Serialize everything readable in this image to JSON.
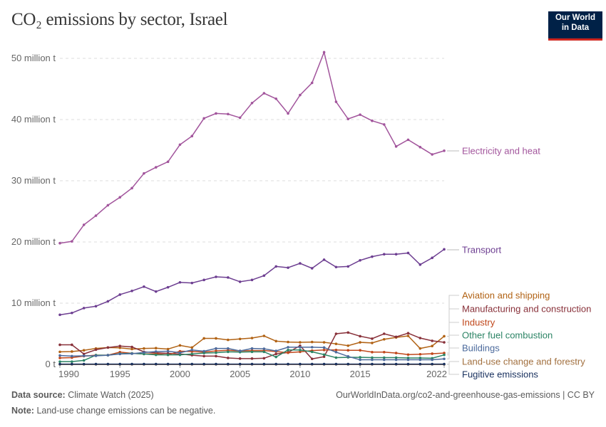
{
  "title": "CO₂ emissions by sector, Israel",
  "logo": {
    "line1": "Our World",
    "line2": "in Data"
  },
  "footer": {
    "source_label": "Data source:",
    "source": "Climate Watch (2025)",
    "url": "OurWorldInData.org/co2-and-greenhouse-gas-emissions | CC BY",
    "note_label": "Note:",
    "note": "Land-use change emissions can be negative."
  },
  "chart_data": {
    "type": "line",
    "title": "CO₂ emissions by sector, Israel",
    "xlabel": "",
    "ylabel": "",
    "xlim": [
      1990,
      2022
    ],
    "ylim": [
      0,
      50000000
    ],
    "grid": "horizontal dashed",
    "legend": "right, inline labels",
    "x_ticks": [
      "1990",
      "1995",
      "2000",
      "2005",
      "2010",
      "2015",
      "2022"
    ],
    "x_tick_values": [
      1990,
      1995,
      2000,
      2005,
      2010,
      2015,
      2022
    ],
    "y_ticks": [
      "0 t",
      "10 million t",
      "20 million t",
      "30 million t",
      "40 million t",
      "50 million t"
    ],
    "y_tick_values": [
      0,
      10,
      20,
      30,
      40,
      50
    ],
    "y_unit": "million t",
    "x": [
      1990,
      1991,
      1992,
      1993,
      1994,
      1995,
      1996,
      1997,
      1998,
      1999,
      2000,
      2001,
      2002,
      2003,
      2004,
      2005,
      2006,
      2007,
      2008,
      2009,
      2010,
      2011,
      2012,
      2013,
      2014,
      2015,
      2016,
      2017,
      2018,
      2019,
      2020,
      2021,
      2022
    ],
    "series": [
      {
        "name": "Electricity and heat",
        "color": "#a2559c",
        "values": [
          19.8,
          20.1,
          22.8,
          24.3,
          26.0,
          27.3,
          28.8,
          31.2,
          32.2,
          33.1,
          35.9,
          37.3,
          40.2,
          41.0,
          40.9,
          40.3,
          42.7,
          44.3,
          43.4,
          41.0,
          44.0,
          46.0,
          51.0,
          42.9,
          40.1,
          40.8,
          39.8,
          39.2,
          35.6,
          36.7,
          35.5,
          34.3,
          34.9
        ]
      },
      {
        "name": "Transport",
        "color": "#6d3e91",
        "values": [
          8.1,
          8.4,
          9.2,
          9.5,
          10.3,
          11.4,
          12.0,
          12.7,
          11.9,
          12.6,
          13.4,
          13.3,
          13.8,
          14.3,
          14.2,
          13.5,
          13.8,
          14.5,
          16.0,
          15.8,
          16.5,
          15.7,
          17.1,
          15.9,
          16.0,
          17.0,
          17.6,
          18.0,
          18.0,
          18.2,
          16.3,
          17.4,
          18.8
        ]
      },
      {
        "name": "Aviation and shipping",
        "color": "#b16214",
        "values": [
          2.05,
          2.1,
          2.3,
          2.6,
          2.75,
          2.7,
          2.5,
          2.6,
          2.65,
          2.5,
          3.1,
          2.75,
          4.25,
          4.25,
          4.0,
          4.15,
          4.3,
          4.65,
          3.8,
          3.65,
          3.6,
          3.65,
          3.6,
          3.35,
          3.05,
          3.6,
          3.5,
          4.1,
          4.4,
          4.65,
          2.6,
          3.0,
          4.6
        ]
      },
      {
        "name": "Manufacturing and construction",
        "color": "#883039",
        "values": [
          3.2,
          3.2,
          1.7,
          2.4,
          2.75,
          3.0,
          2.85,
          2.05,
          1.9,
          1.8,
          1.7,
          1.5,
          1.35,
          1.35,
          1.05,
          0.95,
          0.95,
          1.0,
          1.7,
          1.95,
          3.05,
          0.9,
          1.25,
          5.0,
          5.2,
          4.6,
          4.2,
          5.0,
          4.5,
          5.1,
          4.3,
          3.85,
          3.6
        ]
      },
      {
        "name": "Industry",
        "color": "#c0471b",
        "values": [
          1.05,
          1.1,
          1.35,
          1.5,
          1.5,
          2.0,
          1.8,
          1.7,
          1.75,
          1.55,
          2.15,
          2.1,
          2.0,
          2.2,
          2.3,
          2.2,
          2.25,
          2.25,
          2.1,
          1.9,
          2.05,
          2.25,
          2.35,
          2.35,
          2.3,
          2.3,
          2.0,
          2.0,
          1.85,
          1.6,
          1.65,
          1.75,
          1.85
        ]
      },
      {
        "name": "Other fuel combustion",
        "color": "#2c8465",
        "values": [
          0.45,
          0.45,
          0.65,
          1.5,
          1.5,
          1.75,
          1.8,
          1.7,
          1.55,
          1.55,
          1.55,
          1.7,
          1.85,
          1.9,
          2.05,
          2.0,
          2.05,
          2.05,
          1.2,
          2.35,
          2.35,
          2.05,
          1.6,
          1.1,
          1.15,
          1.15,
          1.1,
          1.1,
          1.1,
          1.05,
          1.05,
          1.0,
          1.55
        ]
      },
      {
        "name": "Buildings",
        "color": "#4c6a9c",
        "values": [
          1.45,
          1.35,
          1.4,
          1.4,
          1.5,
          1.7,
          1.75,
          1.95,
          2.1,
          2.15,
          1.9,
          2.35,
          2.15,
          2.6,
          2.6,
          2.2,
          2.6,
          2.55,
          2.2,
          2.8,
          2.8,
          2.8,
          2.75,
          2.0,
          1.3,
          0.75,
          0.75,
          0.75,
          0.75,
          0.75,
          0.75,
          0.75,
          0.9
        ]
      },
      {
        "name": "Land-use change and forestry",
        "color": "#a2703f",
        "values": [
          0,
          0,
          0,
          0,
          0,
          0,
          0,
          0,
          0,
          0,
          0,
          0,
          0,
          0,
          0,
          0,
          0,
          0,
          0,
          0,
          0,
          0,
          0,
          0,
          0,
          0,
          0,
          0,
          0,
          0,
          0,
          0,
          0
        ]
      },
      {
        "name": "Fugitive emissions",
        "color": "#18305e",
        "values": [
          0.05,
          0.05,
          0.05,
          0.05,
          0.05,
          0.05,
          0.05,
          0.05,
          0.05,
          0.05,
          0.05,
          0.05,
          0.05,
          0.05,
          0.05,
          0.05,
          0.05,
          0.05,
          0.05,
          0.05,
          0.05,
          0.05,
          0.05,
          0.05,
          0.05,
          0.05,
          0.05,
          0.05,
          0.05,
          0.05,
          0.05,
          0.05,
          0.05
        ]
      }
    ]
  }
}
